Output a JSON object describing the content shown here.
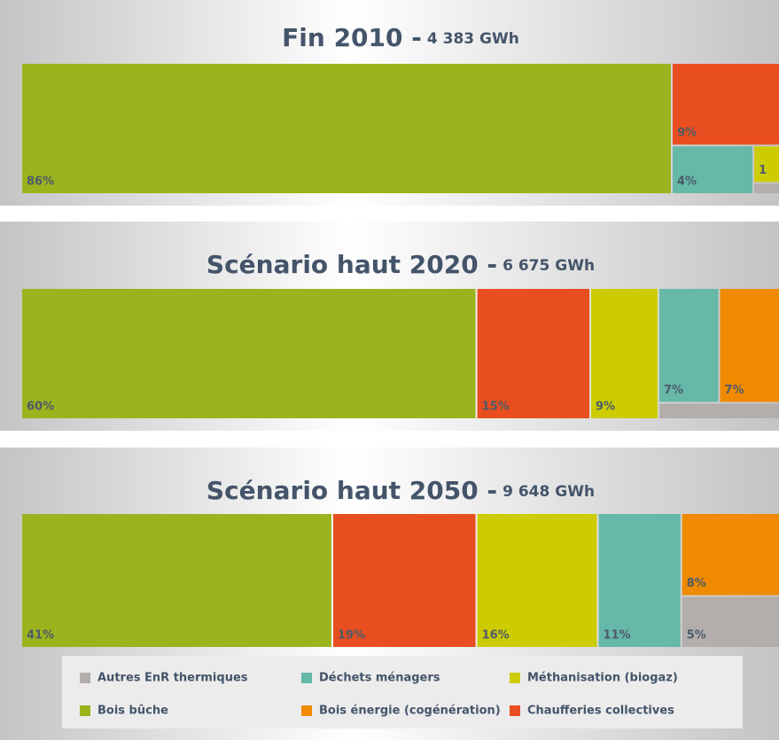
{
  "legend": {
    "categories": [
      "Autres EnR thermiques",
      "Déchets ménagers",
      "Méthanisation (biogaz)",
      "Bois bûche",
      "Bois énergie (cogénération)",
      "Chaufferies collectives"
    ],
    "colors": [
      "#b3aeab",
      "#66b8a8",
      "#cccc00",
      "#9bb31c",
      "#f08a00",
      "#e84e1f"
    ]
  },
  "chart_data": [
    {
      "type": "treemap",
      "title": "Fin 2010 -",
      "subtitle": "4 383 GWh",
      "values": [
        0.3,
        4,
        1,
        86,
        0,
        9
      ],
      "value_labels": [
        null,
        "4%",
        "1",
        "86%",
        null,
        "9%"
      ]
    },
    {
      "type": "treemap",
      "title": "Scénario haut 2020 -",
      "subtitle": "6 675 GWh",
      "values": [
        2,
        7,
        9,
        60,
        7,
        15
      ],
      "value_labels": [
        null,
        "7%",
        "9%",
        "60%",
        "7%",
        "15%"
      ]
    },
    {
      "type": "treemap",
      "title": "Scénario haut 2050 -",
      "subtitle": "9 648 GWh",
      "values": [
        5,
        11,
        16,
        41,
        8,
        19
      ],
      "value_labels": [
        "5%",
        "11%",
        "16%",
        "41%",
        "8%",
        "19%"
      ]
    }
  ]
}
